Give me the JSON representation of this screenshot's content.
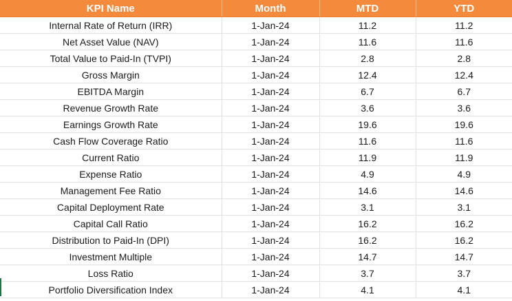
{
  "table": {
    "headers": [
      "KPI Name",
      "Month",
      "MTD",
      "YTD"
    ],
    "rows": [
      {
        "kpi": "Internal Rate of Return (IRR)",
        "month": "1-Jan-24",
        "mtd": "11.2",
        "ytd": "11.2"
      },
      {
        "kpi": "Net Asset Value (NAV)",
        "month": "1-Jan-24",
        "mtd": "11.6",
        "ytd": "11.6"
      },
      {
        "kpi": "Total Value to Paid-In (TVPI)",
        "month": "1-Jan-24",
        "mtd": "2.8",
        "ytd": "2.8"
      },
      {
        "kpi": "Gross Margin",
        "month": "1-Jan-24",
        "mtd": "12.4",
        "ytd": "12.4"
      },
      {
        "kpi": "EBITDA Margin",
        "month": "1-Jan-24",
        "mtd": "6.7",
        "ytd": "6.7"
      },
      {
        "kpi": "Revenue Growth Rate",
        "month": "1-Jan-24",
        "mtd": "3.6",
        "ytd": "3.6"
      },
      {
        "kpi": "Earnings Growth Rate",
        "month": "1-Jan-24",
        "mtd": "19.6",
        "ytd": "19.6"
      },
      {
        "kpi": "Cash Flow Coverage Ratio",
        "month": "1-Jan-24",
        "mtd": "11.6",
        "ytd": "11.6"
      },
      {
        "kpi": "Current Ratio",
        "month": "1-Jan-24",
        "mtd": "11.9",
        "ytd": "11.9"
      },
      {
        "kpi": "Expense Ratio",
        "month": "1-Jan-24",
        "mtd": "4.9",
        "ytd": "4.9"
      },
      {
        "kpi": "Management Fee Ratio",
        "month": "1-Jan-24",
        "mtd": "14.6",
        "ytd": "14.6"
      },
      {
        "kpi": "Capital Deployment Rate",
        "month": "1-Jan-24",
        "mtd": "3.1",
        "ytd": "3.1"
      },
      {
        "kpi": "Capital Call Ratio",
        "month": "1-Jan-24",
        "mtd": "16.2",
        "ytd": "16.2"
      },
      {
        "kpi": "Distribution to Paid-In (DPI)",
        "month": "1-Jan-24",
        "mtd": "16.2",
        "ytd": "16.2"
      },
      {
        "kpi": "Investment Multiple",
        "month": "1-Jan-24",
        "mtd": "14.7",
        "ytd": "14.7"
      },
      {
        "kpi": "Loss Ratio",
        "month": "1-Jan-24",
        "mtd": "3.7",
        "ytd": "3.7"
      },
      {
        "kpi": "Portfolio Diversification Index",
        "month": "1-Jan-24",
        "mtd": "4.1",
        "ytd": "4.1"
      }
    ]
  },
  "colors": {
    "header_bg": "#f48a3c",
    "header_text": "#ffffff",
    "grid_line": "#e2e2e2",
    "cell_text": "#1a1a1a",
    "selection_edge": "#217346"
  }
}
